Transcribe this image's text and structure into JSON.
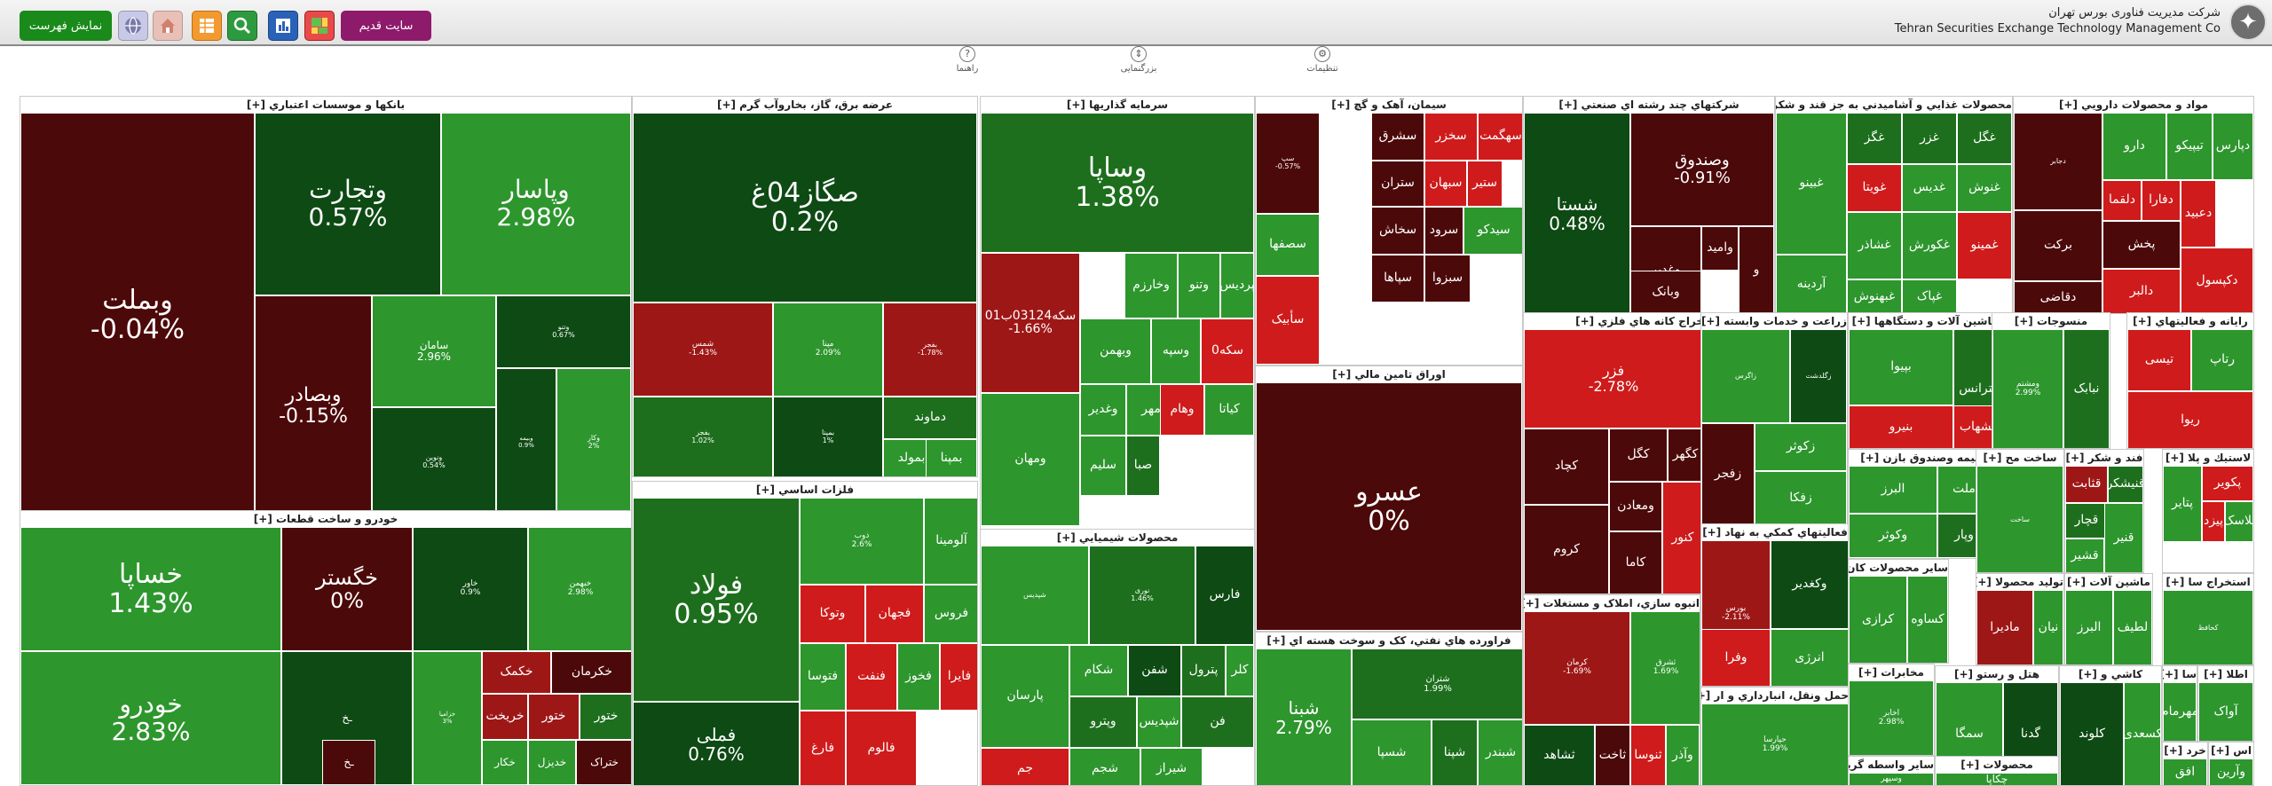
{
  "header": {
    "company_fa": "شرکت مدیریت فناوری بورس تهران",
    "company_en": "Tehran Securities Exchange Technology Management Co",
    "old_site": "سایت قدیم",
    "show_list": "نمایش فهرست"
  },
  "toolbar": {
    "settings": "تنظیمات",
    "zoom": "بزرگنمایی",
    "help": "راهنما"
  },
  "colors": {
    "g1": "#1d6f1d",
    "g2": "#2d962d",
    "g3": "#54b83c",
    "gd": "#0e4a14",
    "r1": "#9e1717",
    "r2": "#cf1b1b",
    "rd": "#4c0909",
    "header_green": "#1a8a1a",
    "header_purple": "#8e1a6c"
  },
  "sectors": [
    {
      "title": "بانکها و موسسات اعتباري [+]",
      "tiles": [
        {
          "n": "وبملت",
          "p": "-0.04%",
          "c": "rd"
        },
        {
          "n": "وتجارت",
          "p": "0.57%",
          "c": "gd"
        },
        {
          "n": "وپاسار",
          "p": "2.98%",
          "c": "g2"
        },
        {
          "n": "وبصادر",
          "p": "-0.15%",
          "c": "rd"
        },
        {
          "n": "سامان",
          "p": "2.96%",
          "c": "g2"
        },
        {
          "n": "وتنو",
          "p": "0.67%",
          "c": "gd"
        },
        {
          "n": "وبیمه",
          "p": "0.9%",
          "c": "gd"
        },
        {
          "n": "ونوین",
          "p": "0.54%",
          "c": "gd"
        },
        {
          "n": "وکار",
          "p": "2%",
          "c": "g2"
        }
      ]
    },
    {
      "title": "خودرو و ساخت قطعات [+]",
      "tiles": [
        {
          "n": "خساپا",
          "p": "1.43%",
          "c": "g2"
        },
        {
          "n": "خودرو",
          "p": "2.83%",
          "c": "g2"
        },
        {
          "n": "خگستر",
          "p": "0%",
          "c": "rd"
        },
        {
          "n": "خاور",
          "p": "0.9%",
          "c": "gd"
        },
        {
          "n": "خبهمن",
          "p": "2.98%",
          "c": "g2"
        },
        {
          "n": "خزامیا",
          "p": "3%",
          "c": "g2"
        },
        {
          "n": "خکمک",
          "p": "",
          "c": "r1"
        },
        {
          "n": "خکرمان",
          "p": "",
          "c": "rd"
        },
        {
          "n": "خریخت",
          "p": "",
          "c": "r1"
        },
        {
          "n": "ختور",
          "p": "",
          "c": "r1"
        },
        {
          "n": "ختور",
          "p": "",
          "c": "g1"
        },
        {
          "n": "خکار",
          "p": "",
          "c": "g2"
        },
        {
          "n": "خدیزل",
          "p": "",
          "c": "g2"
        },
        {
          "n": "ختراک",
          "p": "",
          "c": "rd"
        },
        {
          "n": "ـخ",
          "p": "",
          "c": "gd"
        },
        {
          "n": "ـخ",
          "p": "",
          "c": "rd"
        }
      ]
    },
    {
      "title": "عرضه برق، گاز، بخاروآب گرم [+]",
      "tiles": [
        {
          "n": "صگاز04غ",
          "p": "0.2%",
          "c": "gd"
        },
        {
          "n": "شمس",
          "p": "-1.43%",
          "c": "r1"
        },
        {
          "n": "مپنا",
          "p": "2.09%",
          "c": "g2"
        },
        {
          "n": "بفجر",
          "p": "-1.78%",
          "c": "r1"
        },
        {
          "n": "بفجر",
          "p": "1.02%",
          "c": "g1"
        },
        {
          "n": "بمپنا",
          "p": "1%",
          "c": "gd"
        },
        {
          "n": "دماوند",
          "p": "",
          "c": "g1"
        },
        {
          "n": "بمولد",
          "p": "",
          "c": "g2"
        },
        {
          "n": "بمپنا",
          "p": "",
          "c": "g2"
        }
      ]
    },
    {
      "title": "فلزات اساسي [+]",
      "tiles": [
        {
          "n": "فولاد",
          "p": "0.95%",
          "c": "g1"
        },
        {
          "n": "فملی",
          "p": "0.76%",
          "c": "gd"
        },
        {
          "n": "ذوب",
          "p": "2.6%",
          "c": "g2"
        },
        {
          "n": "آلومینا",
          "p": "",
          "c": "g2"
        },
        {
          "n": "وتوکا",
          "p": "",
          "c": "r2"
        },
        {
          "n": "فجهان",
          "p": "",
          "c": "r2"
        },
        {
          "n": "فروس",
          "p": "",
          "c": "g2"
        },
        {
          "n": "فتوسا",
          "p": "",
          "c": "g2"
        },
        {
          "n": "فنفت",
          "p": "",
          "c": "r2"
        },
        {
          "n": "فخوز",
          "p": "",
          "c": "g2"
        },
        {
          "n": "فایرا",
          "p": "",
          "c": "r2"
        },
        {
          "n": "فارغ",
          "p": "",
          "c": "r2"
        },
        {
          "n": "فالوم",
          "p": "",
          "c": "r2"
        }
      ]
    },
    {
      "title": "سرمايه گذاريها [+]",
      "tiles": [
        {
          "n": "وساپا",
          "p": "1.38%",
          "c": "g1"
        },
        {
          "n": "سکه03124ب01",
          "p": "-1.66%",
          "c": "r1"
        },
        {
          "n": "پردیس",
          "p": "",
          "c": "g2"
        },
        {
          "n": "وتنو",
          "p": "",
          "c": "g2"
        },
        {
          "n": "وخارزم",
          "p": "",
          "c": "g2"
        },
        {
          "n": "وبهمن",
          "p": "",
          "c": "g2"
        },
        {
          "n": "وسپه",
          "p": "",
          "c": "g2"
        },
        {
          "n": "سکه0",
          "p": "",
          "c": "r2"
        },
        {
          "n": "وغدیر",
          "p": "",
          "c": "g2"
        },
        {
          "n": "ومهان",
          "p": "",
          "c": "g2"
        },
        {
          "n": "سلیم",
          "p": "",
          "c": "g2"
        },
        {
          "n": "صبا",
          "p": "",
          "c": "g1"
        },
        {
          "n": "مهر",
          "p": "",
          "c": "g2"
        },
        {
          "n": "وهام",
          "p": "",
          "c": "r2"
        },
        {
          "n": "کیاتا",
          "p": "",
          "c": "g2"
        }
      ]
    },
    {
      "title": "محصولات شيميايي [+]",
      "tiles": [
        {
          "n": "شپدیس",
          "p": "",
          "c": "g2"
        },
        {
          "n": "نوری",
          "p": "1.46%",
          "c": "g1"
        },
        {
          "n": "فارس",
          "p": "",
          "c": "gd"
        },
        {
          "n": "پارسان",
          "p": "",
          "c": "g2"
        },
        {
          "n": "شکام",
          "p": "",
          "c": "g2"
        },
        {
          "n": "شفن",
          "p": "",
          "c": "gd"
        },
        {
          "n": "پترول",
          "p": "",
          "c": "g1"
        },
        {
          "n": "کلر",
          "p": "",
          "c": "g2"
        },
        {
          "n": "جم",
          "p": "",
          "c": "r2"
        },
        {
          "n": "شجم",
          "p": "",
          "c": "g2"
        },
        {
          "n": "شیراز",
          "p": "",
          "c": "g2"
        },
        {
          "n": "وپترو",
          "p": "",
          "c": "g1"
        },
        {
          "n": "شپدیس",
          "p": "",
          "c": "g2"
        },
        {
          "n": "فن",
          "p": "",
          "c": "g1"
        }
      ]
    },
    {
      "title": "سيمان، آهک و گچ [+]",
      "tiles": [
        {
          "n": "سهگمت",
          "p": "",
          "c": "r2"
        },
        {
          "n": "سخزر",
          "p": "",
          "c": "r2"
        },
        {
          "n": "سشرق",
          "p": "",
          "c": "rd"
        },
        {
          "n": "ستران",
          "p": "",
          "c": "rd"
        },
        {
          "n": "سبهان",
          "p": "",
          "c": "r2"
        },
        {
          "n": "ستیر",
          "p": "",
          "c": "r2"
        },
        {
          "n": "سخاش",
          "p": "",
          "c": "rd"
        },
        {
          "n": "سرود",
          "p": "",
          "c": "rd"
        },
        {
          "n": "سیدکو",
          "p": "",
          "c": "g2"
        },
        {
          "n": "سپاها",
          "p": "",
          "c": "rd"
        },
        {
          "n": "سبزوا",
          "p": "",
          "c": "rd"
        },
        {
          "n": "سصفها",
          "p": "",
          "c": "g2"
        },
        {
          "n": "سأبیک",
          "p": "",
          "c": "r2"
        },
        {
          "n": "سپ",
          "p": "-0.57%",
          "c": "rd"
        }
      ]
    },
    {
      "title": "اوراق تامين مالي [+]",
      "tiles": [
        {
          "n": "عسرو",
          "p": "0%",
          "c": "rd"
        }
      ]
    },
    {
      "title": "فراورده هاي نفتي، کک و سوخت هسته اي [+]",
      "tiles": [
        {
          "n": "شبنا",
          "p": "2.79%",
          "c": "g2"
        },
        {
          "n": "شتران",
          "p": "1.99%",
          "c": "g1"
        },
        {
          "n": "شسپا",
          "p": "",
          "c": "g2"
        },
        {
          "n": "شپنا",
          "p": "",
          "c": "g1"
        },
        {
          "n": "شبندر",
          "p": "",
          "c": "g2"
        }
      ]
    },
    {
      "title": "شرکتهاي چند رشته اي صنعتي [+]",
      "tiles": [
        {
          "n": "شستا",
          "p": "0.48%",
          "c": "gd"
        },
        {
          "n": "وصندوق",
          "p": "-0.91%",
          "c": "rd"
        },
        {
          "n": "وغدیر",
          "p": "",
          "c": "rd"
        },
        {
          "n": "وامید",
          "p": "",
          "c": "rd"
        },
        {
          "n": "وبانک",
          "p": "",
          "c": "rd"
        },
        {
          "n": "و",
          "p": "",
          "c": "rd"
        }
      ]
    },
    {
      "title": "استخراج کانه هاي فلزي [+]",
      "tiles": [
        {
          "n": "فزر",
          "p": "-2.78%",
          "c": "r2"
        },
        {
          "n": "کچاد",
          "p": "",
          "c": "rd"
        },
        {
          "n": "کگل",
          "p": "",
          "c": "rd"
        },
        {
          "n": "کگهر",
          "p": "",
          "c": "rd"
        },
        {
          "n": "ومعادن",
          "p": "",
          "c": "rd"
        },
        {
          "n": "کروم",
          "p": "",
          "c": "rd"
        },
        {
          "n": "کاما",
          "p": "",
          "c": "rd"
        },
        {
          "n": "کنور",
          "p": "",
          "c": "r2"
        }
      ]
    },
    {
      "title": "انبوه سازي، املاک و مستغلات [+]",
      "tiles": [
        {
          "n": "کرمان",
          "p": "-1.69%",
          "c": "r1"
        },
        {
          "n": "ثشرق",
          "p": "1.69%",
          "c": "g2"
        },
        {
          "n": "ثشاهد",
          "p": "",
          "c": "gd"
        },
        {
          "n": "ثاخت",
          "p": "",
          "c": "rd"
        },
        {
          "n": "ثنوسا",
          "p": "",
          "c": "r2"
        },
        {
          "n": "وآذر",
          "p": "",
          "c": "g2"
        }
      ]
    },
    {
      "title": "محصولات غذايي و آشاميدني به جز قند و شکر [+]",
      "tiles": [
        {
          "n": "غگل",
          "p": "",
          "c": "g1"
        },
        {
          "n": "غزر",
          "p": "",
          "c": "g1"
        },
        {
          "n": "غگز",
          "p": "",
          "c": "g1"
        },
        {
          "n": "غویتا",
          "p": "",
          "c": "r2"
        },
        {
          "n": "غدیس",
          "p": "",
          "c": "g2"
        },
        {
          "n": "غنوش",
          "p": "",
          "c": "g2"
        },
        {
          "n": "غبینو",
          "p": "",
          "c": "g2"
        },
        {
          "n": "آردینه",
          "p": "",
          "c": "g2"
        },
        {
          "n": "غشاذر",
          "p": "",
          "c": "g2"
        },
        {
          "n": "غبهنوش",
          "p": "",
          "c": "g2"
        },
        {
          "n": "غکورش",
          "p": "",
          "c": "g2"
        },
        {
          "n": "غمینو",
          "p": "",
          "c": "r2"
        },
        {
          "n": "غپاک",
          "p": "",
          "c": "g2"
        }
      ]
    },
    {
      "title": "مواد و محصولات دارويي [+]",
      "tiles": [
        {
          "n": "دپارس",
          "p": "",
          "c": "g2"
        },
        {
          "n": "تیپیکو",
          "p": "",
          "c": "g2"
        },
        {
          "n": "دارو",
          "p": "",
          "c": "g2"
        },
        {
          "n": "دجابر",
          "p": "",
          "c": "rd"
        },
        {
          "n": "دلقما",
          "p": "",
          "c": "r2"
        },
        {
          "n": "برکت",
          "p": "",
          "c": "rd"
        },
        {
          "n": "دفارا",
          "p": "",
          "c": "r2"
        },
        {
          "n": "پخش",
          "p": "",
          "c": "rd"
        },
        {
          "n": "دقاضی",
          "p": "",
          "c": "rd"
        },
        {
          "n": "دالبر",
          "p": "",
          "c": "r2"
        },
        {
          "n": "دعبید",
          "p": "",
          "c": "r2"
        },
        {
          "n": "دکپسول",
          "p": "",
          "c": "r2"
        }
      ]
    },
    {
      "title": "زراعت و خدمات وابسته [+]",
      "tiles": [
        {
          "n": "زاگرس",
          "p": "",
          "c": "g2"
        },
        {
          "n": "زفجر",
          "p": "",
          "c": "rd"
        },
        {
          "n": "زگلدشت",
          "p": "",
          "c": "gd"
        },
        {
          "n": "زکوثر",
          "p": "",
          "c": "g2"
        },
        {
          "n": "زفکا",
          "p": "",
          "c": "g2"
        }
      ]
    },
    {
      "title": "فعاليتهاي کمکي به نهاد [+]",
      "tiles": [
        {
          "n": "بورس",
          "p": "-2.11%",
          "c": "r1"
        },
        {
          "n": "وکغدیر",
          "p": "",
          "c": "gd"
        },
        {
          "n": "انرژی",
          "p": "",
          "c": "g2"
        },
        {
          "n": "وفرا",
          "p": "",
          "c": "r2"
        }
      ]
    },
    {
      "title": "حمل ونقل، انبارداري و ار [+]",
      "tiles": [
        {
          "n": "حپارسا",
          "p": "1.99%",
          "c": "g2"
        },
        {
          "n": "حتاید",
          "p": "",
          "c": "g2"
        },
        {
          "n": "حآفرین",
          "p": "",
          "c": "r2"
        }
      ]
    },
    {
      "title": "ماشين آلات و دستگاهها [+]",
      "tiles": [
        {
          "n": "بپیوا",
          "p": "",
          "c": "g2"
        },
        {
          "n": "بنیرو",
          "p": "",
          "c": "r2"
        },
        {
          "n": "بترانس",
          "p": "",
          "c": "g1"
        },
        {
          "n": "بشهاب",
          "p": "",
          "c": "r2"
        }
      ]
    },
    {
      "title": "بيمه وصندوق بازن [+]",
      "tiles": [
        {
          "n": "البرز",
          "p": "",
          "c": "g2"
        },
        {
          "n": "وکوثر",
          "p": "",
          "c": "g2"
        },
        {
          "n": "ملت",
          "p": "",
          "c": "g2"
        },
        {
          "n": "وپار",
          "p": "",
          "c": "g1"
        }
      ]
    },
    {
      "title": "سایر محصولات کان [+]",
      "tiles": [
        {
          "n": "کرازی",
          "p": "",
          "c": "g2"
        },
        {
          "n": "کساوه",
          "p": "",
          "c": "g2"
        }
      ]
    },
    {
      "title": "مخابرات [+]",
      "tiles": [
        {
          "n": "اخابر",
          "p": "2.98%",
          "c": "g2"
        }
      ]
    },
    {
      "title": "سایر واسطه گریها [+]",
      "tiles": [
        {
          "n": "وسپهر",
          "p": "",
          "c": "g2"
        }
      ]
    },
    {
      "title": "منسوجات [+]",
      "tiles": [
        {
          "n": "ومشتم",
          "p": "2.99%",
          "c": "g2"
        },
        {
          "n": "نبابک",
          "p": "",
          "c": "g1"
        }
      ]
    },
    {
      "title": "ساخت مح [+]",
      "tiles": [
        {
          "n": "ساخت",
          "p": "",
          "c": "g2"
        }
      ]
    },
    {
      "title": "فند و شکر [+]",
      "tiles": [
        {
          "n": "قثابت",
          "p": "",
          "c": "r1"
        },
        {
          "n": "قنیشکر",
          "p": "",
          "c": "g1"
        },
        {
          "n": "قچار",
          "p": "",
          "c": "g1"
        },
        {
          "n": "قشیر",
          "p": "",
          "c": "g2"
        },
        {
          "n": "قنیر",
          "p": "",
          "c": "g2"
        }
      ]
    },
    {
      "title": "توليد محصولا [+]",
      "tiles": [
        {
          "n": "مادیرا",
          "p": "",
          "c": "r1"
        },
        {
          "n": "نیان",
          "p": "",
          "c": "g2"
        }
      ]
    },
    {
      "title": "ماشين آلات [+]",
      "tiles": [
        {
          "n": "البرز",
          "p": "",
          "c": "g2"
        },
        {
          "n": "لطیف",
          "p": "",
          "c": "g2"
        }
      ]
    },
    {
      "title": "هتل و رستو [+]",
      "tiles": [
        {
          "n": "سمگا",
          "p": "",
          "c": "g2"
        },
        {
          "n": "گدنا",
          "p": "",
          "c": "gd"
        }
      ]
    },
    {
      "title": "کاشي و [+]",
      "tiles": [
        {
          "n": "کلوند",
          "p": "",
          "c": "gd"
        },
        {
          "n": "کسعدی",
          "p": "",
          "c": "g2"
        }
      ]
    },
    {
      "title": "رايانه و فعاليتهاي [+]",
      "tiles": [
        {
          "n": "تیسی",
          "p": "",
          "c": "r2"
        },
        {
          "n": "رتاپ",
          "p": "",
          "c": "g2"
        },
        {
          "n": "ریوا",
          "p": "",
          "c": "r2"
        }
      ]
    },
    {
      "title": "لاستيك و پلا [+]",
      "tiles": [
        {
          "n": "پتایر",
          "p": "",
          "c": "g2"
        },
        {
          "n": "پکویر",
          "p": "",
          "c": "r2"
        },
        {
          "n": "پیزد",
          "p": "",
          "c": "r2"
        },
        {
          "n": "پلاسک",
          "p": "",
          "c": "g2"
        }
      ]
    },
    {
      "title": "استخراج سا [+]",
      "tiles": [
        {
          "n": "کحافظ",
          "p": "",
          "c": "g2"
        }
      ]
    },
    {
      "title": "سا [+]",
      "tiles": [
        {
          "n": "مهرمام",
          "p": "",
          "c": "g2"
        }
      ]
    },
    {
      "title": "اطلا [+]",
      "tiles": [
        {
          "n": "آواک",
          "p": "",
          "c": "g2"
        }
      ]
    },
    {
      "title": "خرد [+]",
      "tiles": [
        {
          "n": "افق",
          "p": "",
          "c": "g2"
        }
      ]
    },
    {
      "title": "اس [+]",
      "tiles": [
        {
          "n": "وآرین",
          "p": "",
          "c": "g2"
        }
      ]
    },
    {
      "title": "محصولات [+]",
      "tiles": [
        {
          "n": "چکاپا",
          "p": "",
          "c": "g2"
        }
      ]
    }
  ]
}
